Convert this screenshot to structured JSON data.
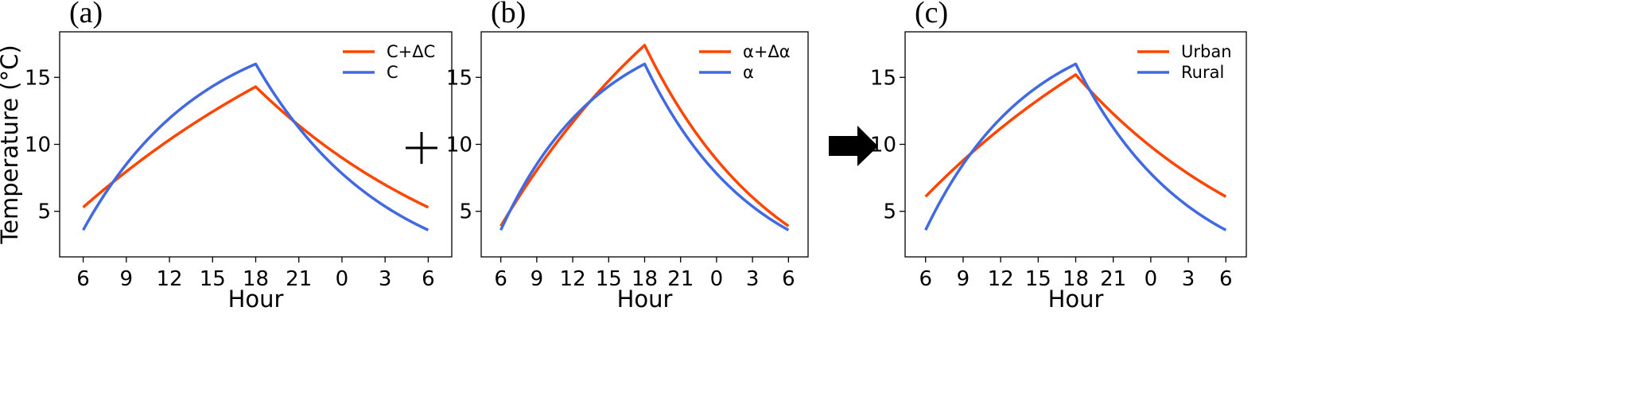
{
  "colors": {
    "orange": "#ff4500",
    "blue": "#4169e1"
  },
  "operators": {
    "plus": "+",
    "arrow": "arrow-right"
  },
  "chart_data": [
    {
      "type": "line",
      "panel_label": "(a)",
      "xlabel": "Hour",
      "ylabel": "Temperature (°C)",
      "xlim": [
        0,
        24
      ],
      "ylim": [
        1.6,
        18.4
      ],
      "xticks": [
        {
          "pos": 0,
          "label": "6"
        },
        {
          "pos": 3,
          "label": "9"
        },
        {
          "pos": 6,
          "label": "12"
        },
        {
          "pos": 9,
          "label": "15"
        },
        {
          "pos": 12,
          "label": "18"
        },
        {
          "pos": 15,
          "label": "21"
        },
        {
          "pos": 18,
          "label": "0"
        },
        {
          "pos": 21,
          "label": "3"
        },
        {
          "pos": 24,
          "label": "6"
        }
      ],
      "yticks": [
        5,
        10,
        15
      ],
      "legend_position": "upper-right",
      "series": [
        {
          "name": "C+ΔC",
          "color": "#ff4500",
          "start": 5.3,
          "peak": 14.3,
          "peak_at": 12,
          "end": 5.3,
          "k_rise": 0.04,
          "k_fall": 0.06
        },
        {
          "name": "C",
          "color": "#4169e1",
          "start": 3.6,
          "peak": 16.0,
          "peak_at": 12,
          "end": 3.6,
          "k_rise": 0.12,
          "k_fall": 0.11
        }
      ]
    },
    {
      "type": "line",
      "panel_label": "(b)",
      "xlabel": "Hour",
      "ylabel": "",
      "xlim": [
        0,
        24
      ],
      "ylim": [
        1.6,
        18.4
      ],
      "xticks": [
        {
          "pos": 0,
          "label": "6"
        },
        {
          "pos": 3,
          "label": "9"
        },
        {
          "pos": 6,
          "label": "12"
        },
        {
          "pos": 9,
          "label": "15"
        },
        {
          "pos": 12,
          "label": "18"
        },
        {
          "pos": 15,
          "label": "21"
        },
        {
          "pos": 18,
          "label": "0"
        },
        {
          "pos": 21,
          "label": "3"
        },
        {
          "pos": 24,
          "label": "6"
        }
      ],
      "yticks": [
        5,
        10,
        15
      ],
      "legend_position": "upper-right",
      "series": [
        {
          "name": "α+Δα",
          "color": "#ff4500",
          "start": 3.9,
          "peak": 17.4,
          "peak_at": 12,
          "end": 3.9,
          "k_rise": 0.05,
          "k_fall": 0.09
        },
        {
          "name": "α",
          "color": "#4169e1",
          "start": 3.6,
          "peak": 16.0,
          "peak_at": 12,
          "end": 3.6,
          "k_rise": 0.12,
          "k_fall": 0.11
        }
      ]
    },
    {
      "type": "line",
      "panel_label": "(c)",
      "xlabel": "Hour",
      "ylabel": "",
      "xlim": [
        0,
        24
      ],
      "ylim": [
        1.6,
        18.4
      ],
      "xticks": [
        {
          "pos": 0,
          "label": "6"
        },
        {
          "pos": 3,
          "label": "9"
        },
        {
          "pos": 6,
          "label": "12"
        },
        {
          "pos": 9,
          "label": "15"
        },
        {
          "pos": 12,
          "label": "18"
        },
        {
          "pos": 15,
          "label": "21"
        },
        {
          "pos": 18,
          "label": "0"
        },
        {
          "pos": 21,
          "label": "3"
        },
        {
          "pos": 24,
          "label": "6"
        }
      ],
      "yticks": [
        5,
        10,
        15
      ],
      "legend_position": "upper-right",
      "series": [
        {
          "name": "Urban",
          "color": "#ff4500",
          "start": 6.1,
          "peak": 15.2,
          "peak_at": 12,
          "end": 6.1,
          "k_rise": 0.04,
          "k_fall": 0.06
        },
        {
          "name": "Rural",
          "color": "#4169e1",
          "start": 3.6,
          "peak": 16.0,
          "peak_at": 12,
          "end": 3.6,
          "k_rise": 0.12,
          "k_fall": 0.11
        }
      ]
    }
  ]
}
